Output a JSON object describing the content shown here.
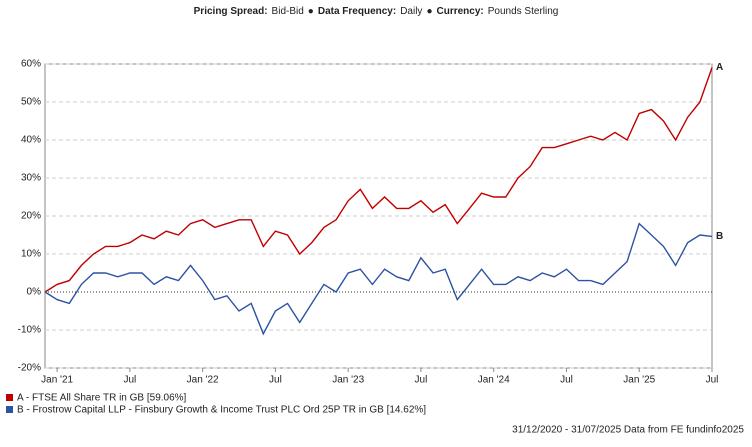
{
  "chart_data": {
    "type": "line",
    "header": [
      {
        "key": "Pricing Spread:",
        "value": "Bid-Bid"
      },
      {
        "key": "Data Frequency:",
        "value": "Daily"
      },
      {
        "key": "Currency:",
        "value": "Pounds Sterling"
      }
    ],
    "separator": "●",
    "footer": "31/12/2020 - 31/07/2025 Data from FE fundinfo2025",
    "x": [
      "2020-12",
      "2021-01",
      "2021-02",
      "2021-03",
      "2021-04",
      "2021-05",
      "2021-06",
      "2021-07",
      "2021-08",
      "2021-09",
      "2021-10",
      "2021-11",
      "2021-12",
      "2022-01",
      "2022-02",
      "2022-03",
      "2022-04",
      "2022-05",
      "2022-06",
      "2022-07",
      "2022-08",
      "2022-09",
      "2022-10",
      "2022-11",
      "2022-12",
      "2023-01",
      "2023-02",
      "2023-03",
      "2023-04",
      "2023-05",
      "2023-06",
      "2023-07",
      "2023-08",
      "2023-09",
      "2023-10",
      "2023-11",
      "2023-12",
      "2024-01",
      "2024-02",
      "2024-03",
      "2024-04",
      "2024-05",
      "2024-06",
      "2024-07",
      "2024-08",
      "2024-09",
      "2024-10",
      "2024-11",
      "2024-12",
      "2025-01",
      "2025-02",
      "2025-03",
      "2025-04",
      "2025-05",
      "2025-06",
      "2025-07"
    ],
    "xlim": [
      "2020-12",
      "2025-07"
    ],
    "xticks": [
      {
        "value": "2021-01",
        "label": "Jan '21"
      },
      {
        "value": "2021-07",
        "label": "Jul"
      },
      {
        "value": "2022-01",
        "label": "Jan '22"
      },
      {
        "value": "2022-07",
        "label": "Jul"
      },
      {
        "value": "2023-01",
        "label": "Jan '23"
      },
      {
        "value": "2023-07",
        "label": "Jul"
      },
      {
        "value": "2024-01",
        "label": "Jan '24"
      },
      {
        "value": "2024-07",
        "label": "Jul"
      },
      {
        "value": "2025-01",
        "label": "Jan '25"
      },
      {
        "value": "2025-07",
        "label": "Jul"
      }
    ],
    "ylim": [
      -20,
      60
    ],
    "yticks": [
      {
        "value": -20,
        "label": "-20%"
      },
      {
        "value": -10,
        "label": "-10%"
      },
      {
        "value": 0,
        "label": "0%"
      },
      {
        "value": 10,
        "label": "10%"
      },
      {
        "value": 20,
        "label": "20%"
      },
      {
        "value": 30,
        "label": "30%"
      },
      {
        "value": 40,
        "label": "40%"
      },
      {
        "value": 50,
        "label": "50%"
      },
      {
        "value": 60,
        "label": "60%"
      }
    ],
    "grid": true,
    "legend": "bottom-left",
    "series": [
      {
        "name": "A - FTSE All Share TR in GB [59.06%]",
        "end_label": "A",
        "color": "#c00000",
        "values": [
          0,
          2,
          3,
          7,
          10,
          12,
          12,
          13,
          15,
          14,
          16,
          15,
          18,
          19,
          17,
          18,
          19,
          19,
          12,
          16,
          15,
          10,
          13,
          17,
          19,
          24,
          27,
          22,
          25,
          22,
          22,
          24,
          21,
          23,
          18,
          22,
          26,
          25,
          25,
          30,
          33,
          38,
          38,
          39,
          40,
          41,
          40,
          42,
          40,
          47,
          48,
          45,
          40,
          46,
          50,
          59.06
        ]
      },
      {
        "name": "B - Frostrow Capital LLP - Finsbury Growth & Income Trust PLC Ord 25P TR in GB [14.62%]",
        "end_label": "B",
        "color": "#2e52a3",
        "values": [
          0,
          -2,
          -3,
          2,
          5,
          5,
          4,
          5,
          5,
          2,
          4,
          3,
          7,
          3,
          -2,
          -1,
          -5,
          -3,
          -11,
          -5,
          -3,
          -8,
          -3,
          2,
          0,
          5,
          6,
          2,
          6,
          4,
          3,
          9,
          5,
          6,
          -2,
          2,
          6,
          2,
          2,
          4,
          3,
          5,
          4,
          6,
          3,
          3,
          2,
          5,
          8,
          18,
          15,
          12,
          7,
          13,
          15,
          14.62
        ]
      }
    ]
  }
}
